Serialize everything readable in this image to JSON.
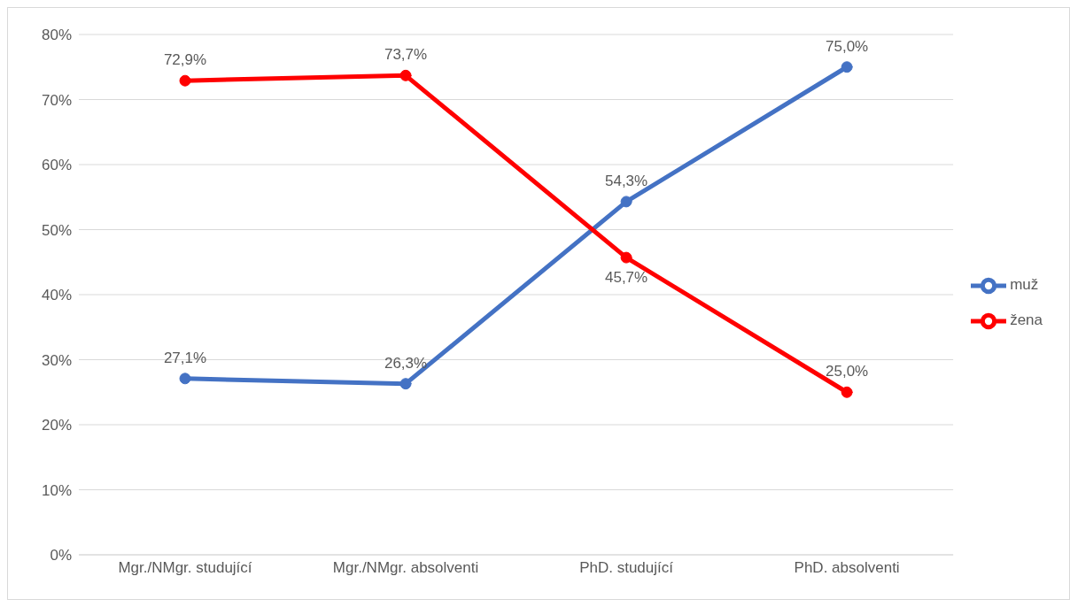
{
  "chart_data": {
    "type": "line",
    "categories": [
      "Mgr./NMgr. studující",
      "Mgr./NMgr. absolventi",
      "PhD. studující",
      "PhD. absolventi"
    ],
    "series": [
      {
        "name": "muž",
        "color": "#4472c4",
        "values": [
          27.1,
          26.3,
          54.3,
          75.0
        ],
        "value_labels": [
          "27,1%",
          "26,3%",
          "54,3%",
          "75,0%"
        ]
      },
      {
        "name": "žena",
        "color": "#ff0000",
        "values": [
          72.9,
          73.7,
          45.7,
          25.0
        ],
        "value_labels": [
          "72,9%",
          "73,7%",
          "45,7%",
          "25,0%"
        ]
      }
    ],
    "ylim": [
      0,
      80
    ],
    "yticks": [
      {
        "value": 0,
        "label": "0%"
      },
      {
        "value": 10,
        "label": "10%"
      },
      {
        "value": 20,
        "label": "20%"
      },
      {
        "value": 30,
        "label": "30%"
      },
      {
        "value": 40,
        "label": "40%"
      },
      {
        "value": 50,
        "label": "50%"
      },
      {
        "value": 60,
        "label": "60%"
      },
      {
        "value": 70,
        "label": "70%"
      },
      {
        "value": 80,
        "label": "80%"
      }
    ],
    "grid": "y",
    "legend": "right",
    "marker": "circle",
    "line_style": "solid"
  }
}
